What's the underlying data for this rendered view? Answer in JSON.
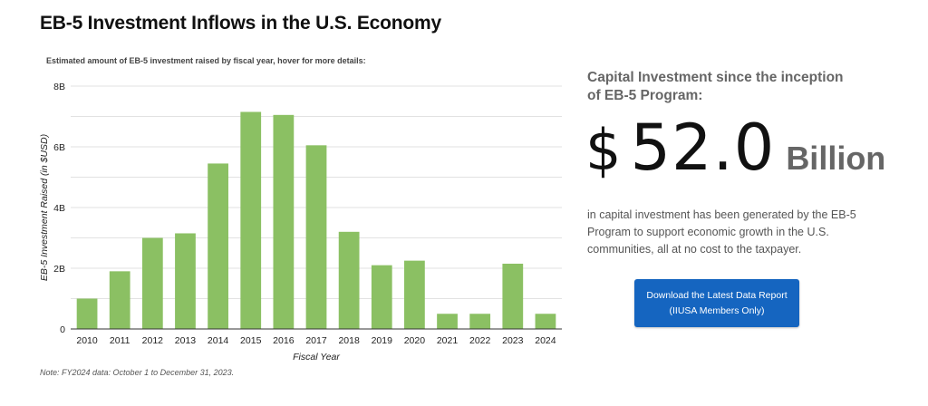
{
  "page": {
    "title": "EB-5 Investment Inflows in the U.S. Economy",
    "note": "Note: FY2024 data: October 1 to December 31, 2023."
  },
  "chart_data": {
    "type": "bar",
    "subtitle": "Estimated amount of EB-5 investment raised by fiscal year, hover for more details:",
    "xlabel": "Fiscal Year",
    "ylabel": "EB-5 Investment Raised (in $USD)",
    "categories": [
      "2010",
      "2011",
      "2012",
      "2013",
      "2014",
      "2015",
      "2016",
      "2017",
      "2018",
      "2019",
      "2020",
      "2021",
      "2022",
      "2023",
      "2024"
    ],
    "values": [
      1.0,
      1.9,
      3.0,
      3.15,
      5.45,
      7.15,
      7.05,
      6.05,
      3.2,
      2.1,
      2.25,
      0.5,
      0.5,
      2.15,
      0.5
    ],
    "ylim": [
      0,
      8
    ],
    "yticks": [
      0,
      2,
      4,
      6,
      8
    ],
    "ytick_labels": [
      "0",
      "2B",
      "4B",
      "6B",
      "8B"
    ],
    "grid": true,
    "bar_color": "#8bc063"
  },
  "stat": {
    "caption": "Capital Investment since the inception of EB-5 Program:",
    "currency": "$",
    "value": "52.0",
    "unit": "Billion",
    "description": "in capital investment has been generated by the EB-5 Program to support economic growth in the U.S. communities, all at no cost to the taxpayer."
  },
  "cta": {
    "line1": "Download the Latest Data Report",
    "line2": "(IIUSA Members Only)",
    "color": "#1565c0"
  }
}
